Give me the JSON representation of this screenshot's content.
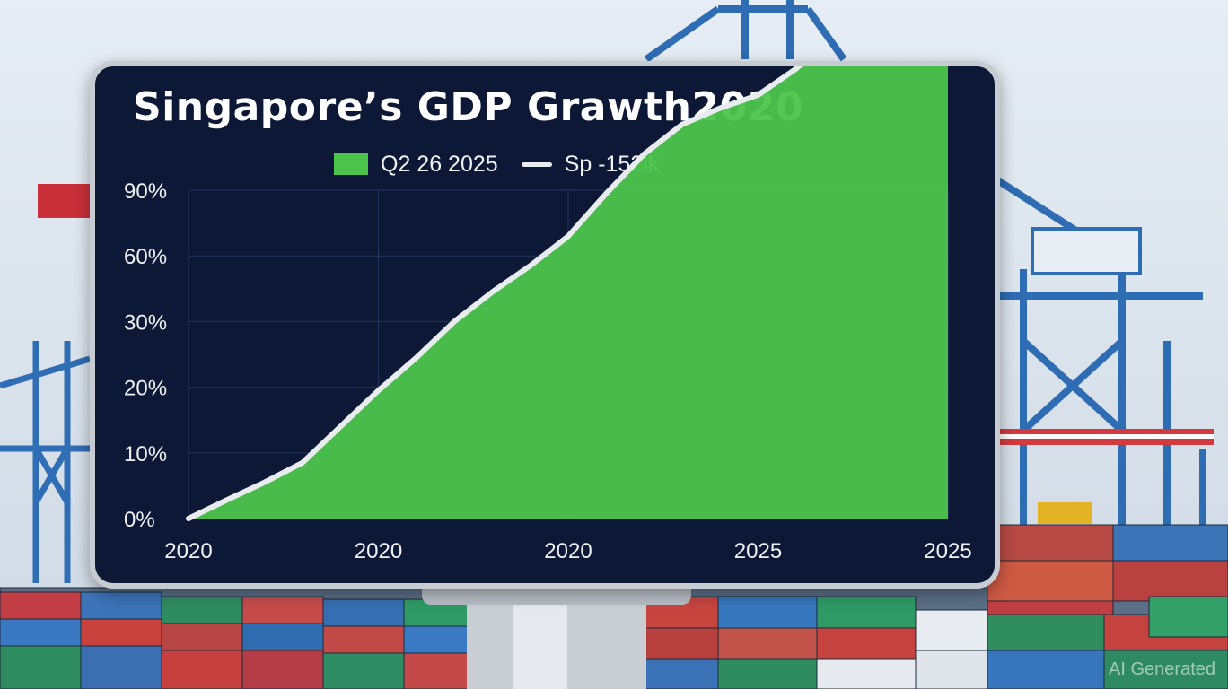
{
  "chart_data": {
    "type": "area",
    "title": "Singapore’s GDP Grawth2020",
    "legend": {
      "placement": "top-center",
      "entries": [
        {
          "name": "Q2 26 2025",
          "kind": "area-swatch"
        },
        {
          "name": "Sp -152lk",
          "kind": "line-swatch"
        }
      ]
    },
    "y_tick_labels": [
      "0%",
      "10%",
      "20%",
      "30%",
      "60%",
      "90%"
    ],
    "x_tick_labels": [
      "2020",
      "2020",
      "2020",
      "2025",
      "2025"
    ],
    "series": [
      {
        "name": "Q2 26 2025",
        "x": [
          0,
          0.5,
          1,
          1.5,
          2,
          2.5,
          3,
          3.5,
          4,
          4.5,
          5,
          5.5,
          6,
          6.5,
          7,
          7.5,
          8,
          8.5,
          9,
          9.5,
          10
        ],
        "y": [
          0,
          0.28,
          0.55,
          0.85,
          1.4,
          1.95,
          2.45,
          3.0,
          3.45,
          3.85,
          4.3,
          4.95,
          5.55,
          6.0,
          6.25,
          6.45,
          6.85,
          7.35,
          7.8,
          8.2,
          8.55
        ]
      }
    ],
    "grid": true,
    "colors": {
      "area": "#4cc44c",
      "line": "#e9ecef",
      "grid": "#26355a",
      "background": "#0c1836"
    }
  },
  "watermark": "AI Generated"
}
